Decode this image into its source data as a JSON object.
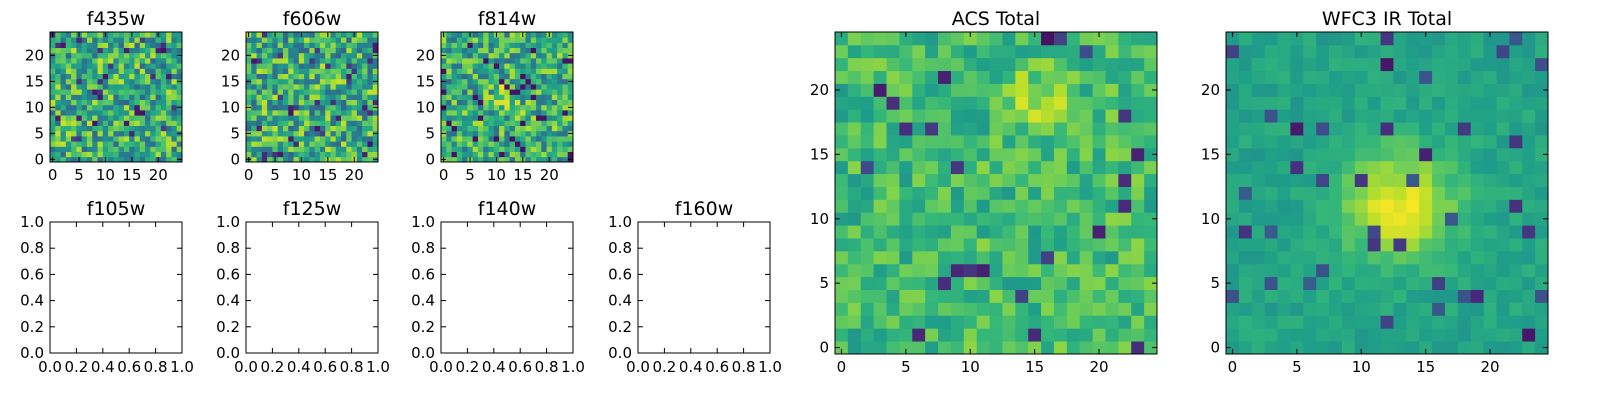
{
  "chart_data": [
    {
      "id": "f435w",
      "type": "heatmap",
      "title": "f435w",
      "size": 25,
      "xlim": [
        -0.5,
        24.5
      ],
      "ylim": [
        -0.5,
        24.5
      ],
      "xticks": [
        0,
        5,
        10,
        15,
        20
      ],
      "yticks": [
        0,
        5,
        10,
        15,
        20
      ],
      "xtick_labels": [
        "0",
        "5",
        "10",
        "15",
        "20"
      ],
      "ytick_labels": [
        "0",
        "5",
        "10",
        "15",
        "20"
      ],
      "colormap": "viridis",
      "values": "pixel noise 25x25, values in 0-1 range (no visible source)"
    },
    {
      "id": "f606w",
      "type": "heatmap",
      "title": "f606w",
      "size": 25,
      "xlim": [
        -0.5,
        24.5
      ],
      "ylim": [
        -0.5,
        24.5
      ],
      "xticks": [
        0,
        5,
        10,
        15,
        20
      ],
      "yticks": [
        0,
        5,
        10,
        15,
        20
      ],
      "xtick_labels": [
        "0",
        "5",
        "10",
        "15",
        "20"
      ],
      "ytick_labels": [
        "0",
        "5",
        "10",
        "15",
        "20"
      ],
      "colormap": "viridis",
      "values": "pixel noise 25x25, values in 0-1 range (no visible source)"
    },
    {
      "id": "f814w",
      "type": "heatmap",
      "title": "f814w",
      "size": 25,
      "xlim": [
        -0.5,
        24.5
      ],
      "ylim": [
        -0.5,
        24.5
      ],
      "xticks": [
        0,
        5,
        10,
        15,
        20
      ],
      "yticks": [
        0,
        5,
        10,
        15,
        20
      ],
      "xtick_labels": [
        "0",
        "5",
        "10",
        "15",
        "20"
      ],
      "ytick_labels": [
        "0",
        "5",
        "10",
        "15",
        "20"
      ],
      "colormap": "viridis",
      "values": "pixel noise 25x25 with faint source near (12,12)"
    },
    {
      "id": "f105w",
      "type": "empty",
      "title": "f105w",
      "xlim": [
        0,
        1
      ],
      "ylim": [
        0,
        1
      ],
      "xtick_labels": [
        "0.0",
        "0.2",
        "0.4",
        "0.6",
        "0.8",
        "1.0"
      ],
      "ytick_labels": [
        "0.0",
        "0.2",
        "0.4",
        "0.6",
        "0.8",
        "1.0"
      ]
    },
    {
      "id": "f125w",
      "type": "empty",
      "title": "f125w",
      "xlim": [
        0,
        1
      ],
      "ylim": [
        0,
        1
      ],
      "xtick_labels": [
        "0.0",
        "0.2",
        "0.4",
        "0.6",
        "0.8",
        "1.0"
      ],
      "ytick_labels": [
        "0.0",
        "0.2",
        "0.4",
        "0.6",
        "0.8",
        "1.0"
      ]
    },
    {
      "id": "f140w",
      "type": "empty",
      "title": "f140w",
      "xlim": [
        0,
        1
      ],
      "ylim": [
        0,
        1
      ],
      "xtick_labels": [
        "0.0",
        "0.2",
        "0.4",
        "0.6",
        "0.8",
        "1.0"
      ],
      "ytick_labels": [
        "0.0",
        "0.2",
        "0.4",
        "0.6",
        "0.8",
        "1.0"
      ]
    },
    {
      "id": "f160w",
      "type": "empty",
      "title": "f160w",
      "xlim": [
        0,
        1
      ],
      "ylim": [
        0,
        1
      ],
      "xtick_labels": [
        "0.0",
        "0.2",
        "0.4",
        "0.6",
        "0.8",
        "1.0"
      ],
      "ytick_labels": [
        "0.0",
        "0.2",
        "0.4",
        "0.6",
        "0.8",
        "1.0"
      ]
    },
    {
      "id": "acs_total",
      "type": "heatmap",
      "title": "ACS Total",
      "size": 25,
      "xlim": [
        -0.5,
        24.5
      ],
      "ylim": [
        -0.5,
        24.5
      ],
      "xticks": [
        0,
        5,
        10,
        15,
        20
      ],
      "yticks": [
        0,
        5,
        10,
        15,
        20
      ],
      "xtick_labels": [
        "0",
        "5",
        "10",
        "15",
        "20"
      ],
      "ytick_labels": [
        "0",
        "5",
        "10",
        "15",
        "20"
      ],
      "colormap": "viridis",
      "values": "noise 25x25 with source near (15,19)"
    },
    {
      "id": "wfc3_ir_total",
      "type": "heatmap",
      "title": "WFC3 IR Total",
      "size": 25,
      "xlim": [
        -0.5,
        24.5
      ],
      "ylim": [
        -0.5,
        24.5
      ],
      "xticks": [
        0,
        5,
        10,
        15,
        20
      ],
      "yticks": [
        0,
        5,
        10,
        15,
        20
      ],
      "xtick_labels": [
        "0",
        "5",
        "10",
        "15",
        "20"
      ],
      "ytick_labels": [
        "0",
        "5",
        "10",
        "15",
        "20"
      ],
      "colormap": "viridis",
      "values": "smooth background 25x25 with bright source centered near (13,11)"
    }
  ]
}
